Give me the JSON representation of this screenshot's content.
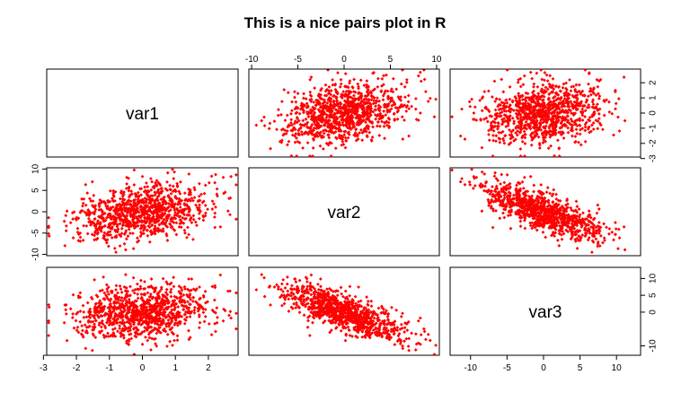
{
  "chart_data": {
    "type": "scatter",
    "plot_kind": "pairs",
    "title": "This is a nice pairs plot in R",
    "variables": [
      "var1",
      "var2",
      "var3"
    ],
    "point_color": "#ff0000",
    "point_shape": "filled-diamond",
    "n_points": 1000,
    "axis_ranges": {
      "var1": [
        -2.9,
        2.9
      ],
      "var2": [
        -10.3,
        10.3
      ],
      "var3": [
        -12.8,
        13.3
      ]
    },
    "ticks": {
      "var1": [
        -3,
        -2,
        -1,
        0,
        1,
        2
      ],
      "var2": [
        -10,
        -5,
        0,
        5,
        10
      ],
      "var3_x": [
        -10,
        -5,
        0,
        5,
        10
      ],
      "var3_y": [
        -10,
        0,
        5,
        10
      ],
      "var1_y": [
        -3,
        -2,
        -1,
        0,
        1,
        2
      ]
    },
    "tick_placement": {
      "top": [
        "var2"
      ],
      "right": [
        "var1",
        "var3"
      ],
      "left": [
        "var2"
      ],
      "bottom": [
        "var1",
        "var3"
      ]
    },
    "distribution": {
      "var1": {
        "mean": 0,
        "sd": 1
      },
      "var2": {
        "mean": 0,
        "sd": 3.2
      },
      "var3": {
        "mean": 0,
        "sd": 4
      },
      "corr_var1_var2": 0.3,
      "corr_var1_var3": 0.2,
      "corr_var2_var3": -0.75
    },
    "grid": false,
    "legend": "none"
  }
}
